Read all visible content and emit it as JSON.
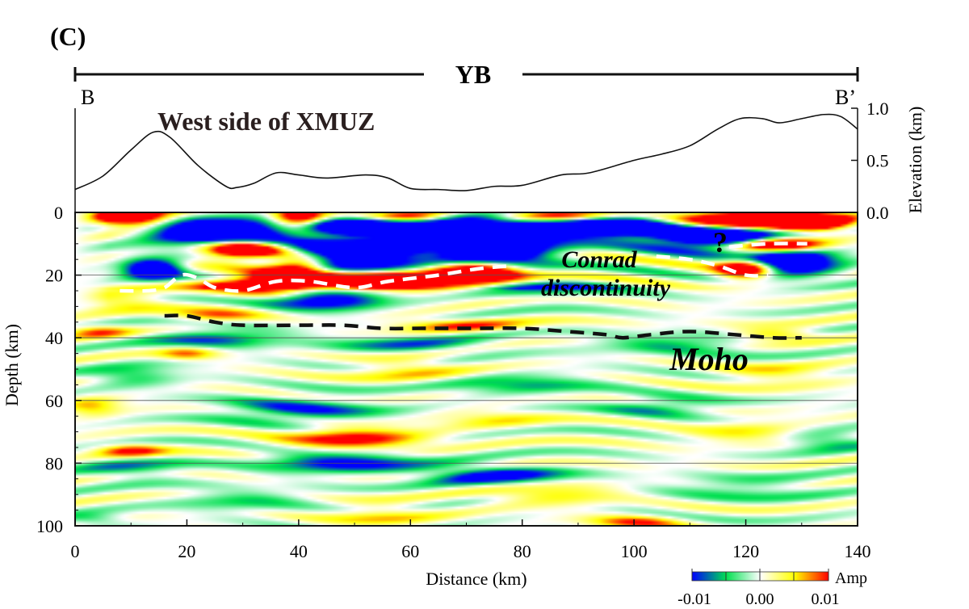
{
  "chart_data": {
    "type": "heatmap",
    "panel_label": "(C)",
    "section_label": "YB",
    "endpoints": {
      "left": "B",
      "right": "B’"
    },
    "region_label": "West side of XMUZ",
    "xlabel": "Distance (km)",
    "ylabel": "Depth (km)",
    "y2label": "Elevation (km)",
    "xlim": [
      0,
      140
    ],
    "ylim": [
      100,
      0
    ],
    "elevation_lim": [
      0,
      1
    ],
    "x_ticks": [
      "0",
      "20",
      "40",
      "60",
      "80",
      "100",
      "120",
      "140"
    ],
    "x_tick_values": [
      0,
      20,
      40,
      60,
      80,
      100,
      120,
      140
    ],
    "y_ticks": [
      "0",
      "20",
      "40",
      "60",
      "80",
      "100"
    ],
    "y_tick_values": [
      0,
      20,
      40,
      60,
      80,
      100
    ],
    "elevation_ticks": [
      "0.0",
      "0.5",
      "1.0"
    ],
    "elevation_tick_values": [
      0,
      0.5,
      1.0
    ],
    "grid_depths": [
      20,
      40,
      60,
      80
    ],
    "elevation_profile": {
      "distance": [
        0,
        5,
        10,
        14,
        17,
        22,
        27,
        29,
        32,
        36,
        40,
        45,
        52,
        56,
        60,
        65,
        70,
        75,
        80,
        87,
        92,
        100,
        105,
        110,
        115,
        119,
        123,
        126,
        130,
        134,
        137,
        140
      ],
      "elevation": [
        0.22,
        0.35,
        0.6,
        0.77,
        0.72,
        0.45,
        0.25,
        0.24,
        0.28,
        0.38,
        0.36,
        0.33,
        0.36,
        0.33,
        0.23,
        0.22,
        0.21,
        0.25,
        0.26,
        0.36,
        0.38,
        0.5,
        0.56,
        0.64,
        0.8,
        0.9,
        0.9,
        0.86,
        0.9,
        0.94,
        0.92,
        0.8
      ]
    },
    "interpretations": [
      {
        "name": "Conrad discontinuity",
        "style": "white-dashed",
        "segments": [
          {
            "distance": [
              8,
              13,
              16,
              19,
              22,
              25,
              30,
              36,
              42,
              50,
              56,
              65,
              72,
              78
            ],
            "depth": [
              25,
              25,
              24,
              20,
              21,
              24,
              25,
              22,
              22,
              24,
              22,
              20,
              18,
              17
            ]
          },
          {
            "distance": [
              104,
              110,
              115,
              120,
              124
            ],
            "depth": [
              14,
              15,
              17,
              20,
              20
            ]
          },
          {
            "distance": [
              117,
              124,
              131
            ],
            "depth": [
              11,
              10,
              10
            ]
          }
        ]
      },
      {
        "name": "Moho",
        "style": "black-dashed",
        "segments": [
          {
            "distance": [
              16,
              20,
              25,
              30,
              40,
              48,
              55,
              62,
              70,
              80,
              88,
              95,
              98,
              103,
              110,
              118,
              125,
              130
            ],
            "depth": [
              33,
              33,
              35,
              36,
              36,
              36,
              37,
              37,
              37,
              37,
              38,
              39,
              40,
              39,
              38,
              39,
              40,
              40
            ]
          }
        ]
      }
    ],
    "annotations": {
      "conrad_line1": "Conrad",
      "conrad_line2": "discontinuity",
      "moho": "Moho",
      "question": "?"
    },
    "colorbar": {
      "label": "Amp",
      "ticks": [
        "-0.01",
        "0.00",
        "0.01"
      ],
      "tick_values": [
        -0.01,
        0.0,
        0.01
      ],
      "colors": [
        "#0000ff",
        "#00e050",
        "#ffffff",
        "#ffff00",
        "#ff0000"
      ]
    },
    "amplitude_blobs": [
      {
        "distance": 10,
        "depth": 2,
        "amp": 0.012,
        "wx": 8,
        "wz": 3
      },
      {
        "distance": 40,
        "depth": 2,
        "amp": 0.012,
        "wx": 5,
        "wz": 3
      },
      {
        "distance": 25,
        "depth": 6,
        "amp": -0.014,
        "wx": 12,
        "wz": 4
      },
      {
        "distance": 55,
        "depth": 5,
        "amp": -0.014,
        "wx": 14,
        "wz": 4
      },
      {
        "distance": 75,
        "depth": 6,
        "amp": -0.013,
        "wx": 12,
        "wz": 4
      },
      {
        "distance": 95,
        "depth": 4,
        "amp": -0.013,
        "wx": 12,
        "wz": 4
      },
      {
        "distance": 120,
        "depth": 2,
        "amp": 0.014,
        "wx": 12,
        "wz": 3
      },
      {
        "distance": 132,
        "depth": 3,
        "amp": 0.012,
        "wx": 6,
        "wz": 3
      },
      {
        "distance": 88,
        "depth": 1,
        "amp": 0.012,
        "wx": 12,
        "wz": 2
      },
      {
        "distance": 60,
        "depth": 2,
        "amp": 0.011,
        "wx": 8,
        "wz": 2
      },
      {
        "distance": 30,
        "depth": 12,
        "amp": 0.012,
        "wx": 7,
        "wz": 3
      },
      {
        "distance": 50,
        "depth": 14,
        "amp": -0.014,
        "wx": 12,
        "wz": 4
      },
      {
        "distance": 75,
        "depth": 13,
        "amp": -0.013,
        "wx": 10,
        "wz": 4
      },
      {
        "distance": 115,
        "depth": 8,
        "amp": -0.014,
        "wx": 12,
        "wz": 4
      },
      {
        "distance": 125,
        "depth": 10,
        "amp": 0.014,
        "wx": 8,
        "wz": 2.5
      },
      {
        "distance": 120,
        "depth": 18,
        "amp": 0.012,
        "wx": 5,
        "wz": 3
      },
      {
        "distance": 128,
        "depth": 16,
        "amp": -0.012,
        "wx": 8,
        "wz": 4
      },
      {
        "distance": 40,
        "depth": 17,
        "amp": 0.012,
        "wx": 6,
        "wz": 3
      },
      {
        "distance": 14,
        "depth": 18,
        "amp": -0.012,
        "wx": 5,
        "wz": 3
      },
      {
        "distance": 35,
        "depth": 23,
        "amp": 0.014,
        "wx": 10,
        "wz": 3
      },
      {
        "distance": 55,
        "depth": 22,
        "amp": 0.014,
        "wx": 12,
        "wz": 3
      },
      {
        "distance": 72,
        "depth": 19,
        "amp": 0.014,
        "wx": 8,
        "wz": 3
      },
      {
        "distance": 45,
        "depth": 28,
        "amp": -0.014,
        "wx": 10,
        "wz": 3
      },
      {
        "distance": 85,
        "depth": 25,
        "amp": -0.005,
        "wx": 12,
        "wz": 3
      },
      {
        "distance": 8,
        "depth": 28,
        "amp": 0.006,
        "wx": 8,
        "wz": 3
      },
      {
        "distance": 25,
        "depth": 33,
        "amp": 0.008,
        "wx": 8,
        "wz": 2
      },
      {
        "distance": 68,
        "depth": 36,
        "amp": 0.008,
        "wx": 12,
        "wz": 2
      },
      {
        "distance": 125,
        "depth": 39,
        "amp": 0.008,
        "wx": 8,
        "wz": 2
      },
      {
        "distance": 4,
        "depth": 38,
        "amp": 0.008,
        "wx": 6,
        "wz": 2
      },
      {
        "distance": 25,
        "depth": 40,
        "amp": -0.008,
        "wx": 12,
        "wz": 3
      },
      {
        "distance": 60,
        "depth": 42,
        "amp": -0.006,
        "wx": 14,
        "wz": 3
      },
      {
        "distance": 108,
        "depth": 42,
        "amp": -0.006,
        "wx": 14,
        "wz": 3
      },
      {
        "distance": 20,
        "depth": 45,
        "amp": 0.007,
        "wx": 5,
        "wz": 2
      },
      {
        "distance": 60,
        "depth": 50,
        "amp": 0.006,
        "wx": 10,
        "wz": 3
      },
      {
        "distance": 10,
        "depth": 52,
        "amp": -0.006,
        "wx": 8,
        "wz": 3
      },
      {
        "distance": 80,
        "depth": 55,
        "amp": -0.006,
        "wx": 14,
        "wz": 3
      },
      {
        "distance": 125,
        "depth": 52,
        "amp": 0.005,
        "wx": 10,
        "wz": 3
      },
      {
        "distance": 40,
        "depth": 63,
        "amp": -0.008,
        "wx": 14,
        "wz": 4
      },
      {
        "distance": 105,
        "depth": 62,
        "amp": -0.006,
        "wx": 10,
        "wz": 3
      },
      {
        "distance": 3,
        "depth": 62,
        "amp": 0.006,
        "wx": 5,
        "wz": 3
      },
      {
        "distance": 75,
        "depth": 66,
        "amp": 0.004,
        "wx": 10,
        "wz": 3
      },
      {
        "distance": 50,
        "depth": 72,
        "amp": 0.012,
        "wx": 12,
        "wz": 3
      },
      {
        "distance": 10,
        "depth": 76,
        "amp": 0.009,
        "wx": 6,
        "wz": 2
      },
      {
        "distance": 135,
        "depth": 73,
        "amp": -0.006,
        "wx": 8,
        "wz": 3
      },
      {
        "distance": 120,
        "depth": 70,
        "amp": 0.005,
        "wx": 10,
        "wz": 3
      },
      {
        "distance": 48,
        "depth": 80,
        "amp": -0.011,
        "wx": 14,
        "wz": 3
      },
      {
        "distance": 75,
        "depth": 84,
        "amp": -0.011,
        "wx": 12,
        "wz": 3
      },
      {
        "distance": 10,
        "depth": 82,
        "amp": -0.006,
        "wx": 10,
        "wz": 3
      },
      {
        "distance": 85,
        "depth": 90,
        "amp": 0.006,
        "wx": 12,
        "wz": 3
      },
      {
        "distance": 120,
        "depth": 88,
        "amp": -0.005,
        "wx": 14,
        "wz": 3
      },
      {
        "distance": 30,
        "depth": 92,
        "amp": -0.005,
        "wx": 12,
        "wz": 3
      },
      {
        "distance": 100,
        "depth": 99,
        "amp": 0.008,
        "wx": 8,
        "wz": 2
      },
      {
        "distance": 55,
        "depth": 96,
        "amp": 0.005,
        "wx": 10,
        "wz": 3
      },
      {
        "distance": 3,
        "depth": 98,
        "amp": -0.005,
        "wx": 6,
        "wz": 2
      }
    ]
  }
}
